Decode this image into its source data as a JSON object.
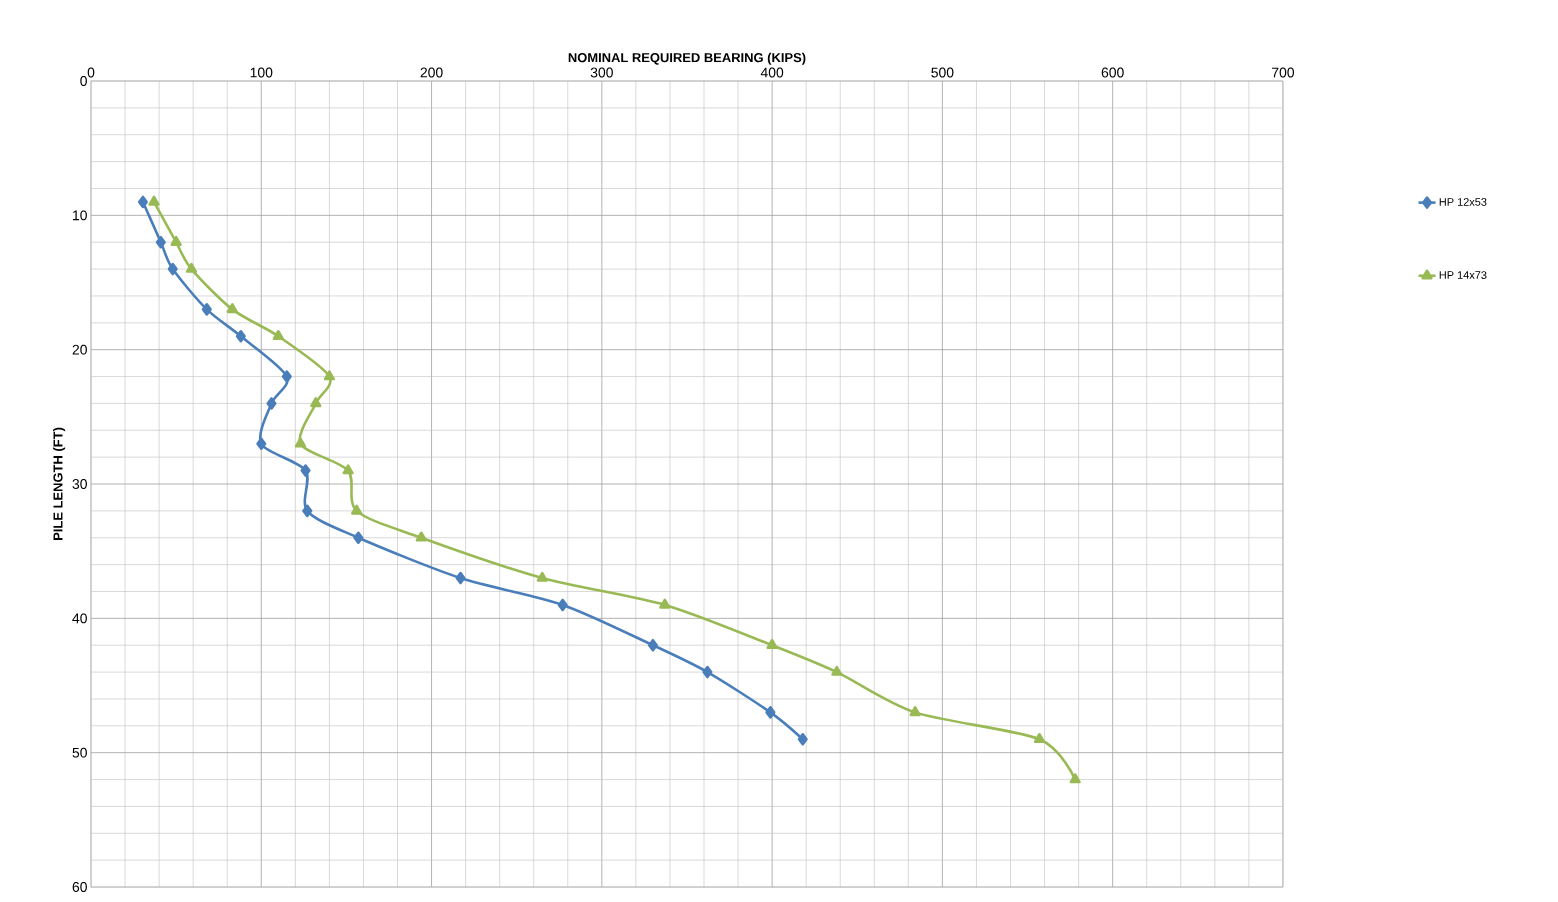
{
  "chart_data": {
    "type": "line",
    "xlabel": "NOMINAL REQUIRED BEARING (KIPS)",
    "ylabel": "PILE LENGTH (FT)",
    "xlim": [
      0,
      700
    ],
    "ylim": [
      60,
      0
    ],
    "xticks": [
      0,
      100,
      200,
      300,
      400,
      500,
      600,
      700
    ],
    "yticks": [
      0,
      10,
      20,
      30,
      40,
      50,
      60
    ],
    "grid": true,
    "legend": "right",
    "line_style": "solid",
    "series": [
      {
        "name": "HP 12x53",
        "color": "#4a7ebb",
        "marker": "diamond",
        "x": [
          30.5,
          41,
          48,
          68,
          88,
          115,
          106,
          100,
          126,
          127,
          157,
          217,
          277,
          330,
          362,
          399,
          418
        ],
        "values": [
          9,
          12,
          14,
          17,
          19,
          22,
          24,
          27,
          29,
          32,
          34,
          37,
          39,
          42,
          44,
          47,
          49
        ]
      },
      {
        "name": "HP 14x73",
        "color": "#98b954",
        "marker": "triangle",
        "x": [
          37,
          50,
          59,
          83,
          110,
          140,
          132,
          123,
          151,
          156,
          194,
          265,
          337,
          400,
          438,
          484,
          557,
          578
        ],
        "values": [
          9,
          12,
          14,
          17,
          19,
          22,
          24,
          27,
          29,
          32,
          34,
          37,
          39,
          42,
          44,
          47,
          49,
          52
        ]
      }
    ]
  }
}
